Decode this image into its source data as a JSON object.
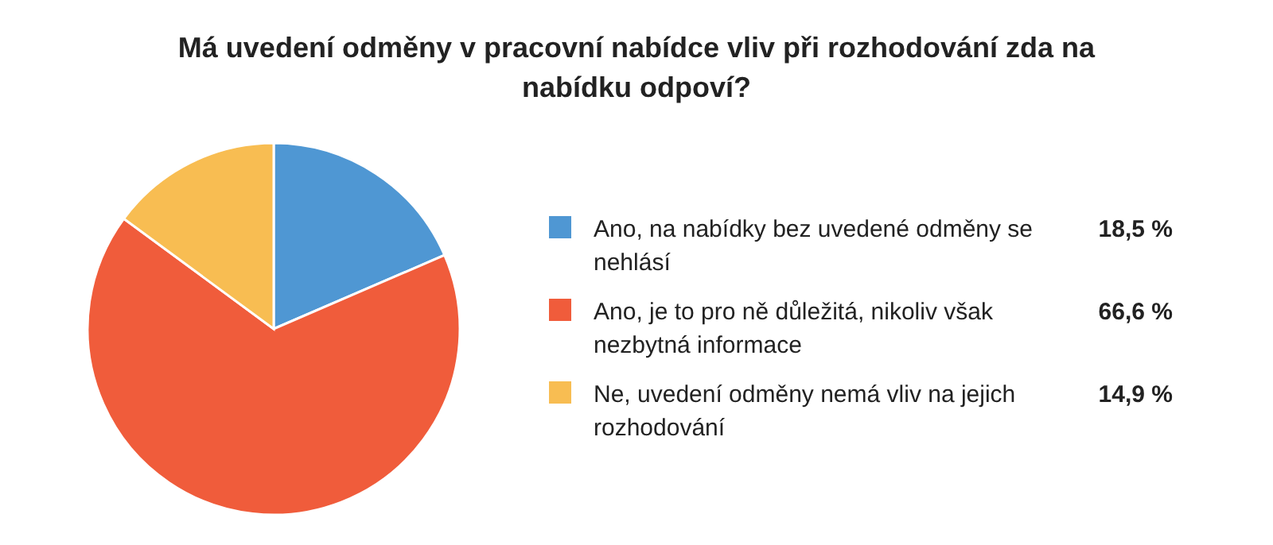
{
  "chart_data": {
    "type": "pie",
    "title": "Má uvedení odměny v pracovní nabídce vliv při rozhodování zda na nabídku odpoví?",
    "categories": [
      "Ano, na nabídky bez uvedené odměny se nehlásí",
      "Ano, je to pro ně důležitá, nikoliv však nezbytná informace",
      "Ne, uvedení odměny nemá vliv na jejich rozhodování"
    ],
    "values": [
      18.5,
      66.6,
      14.9
    ],
    "value_labels": [
      "18,5 %",
      "66,6 %",
      "14,9 %"
    ],
    "colors": [
      "#4f97d3",
      "#f05c3b",
      "#f8bd52"
    ],
    "legend": "right"
  }
}
